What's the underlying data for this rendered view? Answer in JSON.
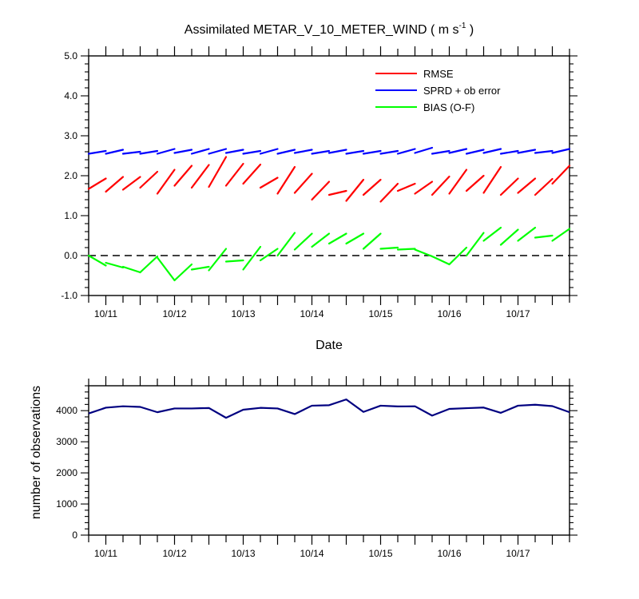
{
  "title_prefix": "Assimilated METAR_V_10_METER_WIND ( m s",
  "title_sup": "-1",
  "title_suffix": " )",
  "chart_data": [
    {
      "type": "line",
      "xlabel": "Date",
      "ylabel": "",
      "ylim": [
        -1.0,
        5.0
      ],
      "yticks": [
        "5.0",
        "4.0",
        "3.0",
        "2.0",
        "1.0",
        "0.0",
        "-1.0"
      ],
      "ytick_values": [
        5,
        4,
        3,
        2,
        1,
        0,
        -1
      ],
      "xticks": [
        "10/11",
        "10/12",
        "10/13",
        "10/14",
        "10/15",
        "10/16",
        "10/17"
      ],
      "xlim": [
        0,
        14
      ],
      "grid": false,
      "reference_line": 0,
      "legend_position": "top-right",
      "series": [
        {
          "name": "RMSE",
          "color": "#ff0000",
          "segments": [
            [
              [
                0.0,
                1.67
              ],
              [
                0.5,
                1.93
              ]
            ],
            [
              [
                0.5,
                1.6
              ],
              [
                1.0,
                1.97
              ]
            ],
            [
              [
                1.0,
                1.65
              ],
              [
                1.5,
                1.97
              ]
            ],
            [
              [
                1.5,
                1.7
              ],
              [
                2.0,
                2.1
              ]
            ],
            [
              [
                2.0,
                1.55
              ],
              [
                2.5,
                2.15
              ]
            ],
            [
              [
                2.5,
                1.75
              ],
              [
                3.0,
                2.25
              ]
            ],
            [
              [
                3.0,
                1.7
              ],
              [
                3.5,
                2.27
              ]
            ],
            [
              [
                3.5,
                1.72
              ],
              [
                4.0,
                2.47
              ]
            ],
            [
              [
                4.0,
                1.75
              ],
              [
                4.5,
                2.3
              ]
            ],
            [
              [
                4.5,
                1.8
              ],
              [
                5.0,
                2.28
              ]
            ],
            [
              [
                5.0,
                1.7
              ],
              [
                5.5,
                1.95
              ]
            ],
            [
              [
                5.5,
                1.55
              ],
              [
                6.0,
                2.22
              ]
            ],
            [
              [
                6.0,
                1.57
              ],
              [
                6.5,
                2.05
              ]
            ],
            [
              [
                6.5,
                1.4
              ],
              [
                7.0,
                1.85
              ]
            ],
            [
              [
                7.0,
                1.52
              ],
              [
                7.5,
                1.62
              ]
            ],
            [
              [
                7.5,
                1.37
              ],
              [
                8.0,
                1.9
              ]
            ],
            [
              [
                8.0,
                1.52
              ],
              [
                8.5,
                1.9
              ]
            ],
            [
              [
                8.5,
                1.35
              ],
              [
                9.0,
                1.8
              ]
            ],
            [
              [
                9.0,
                1.62
              ],
              [
                9.5,
                1.8
              ]
            ],
            [
              [
                9.5,
                1.55
              ],
              [
                10.0,
                1.85
              ]
            ],
            [
              [
                10.0,
                1.52
              ],
              [
                10.5,
                1.98
              ]
            ],
            [
              [
                10.5,
                1.55
              ],
              [
                11.0,
                2.15
              ]
            ],
            [
              [
                11.0,
                1.62
              ],
              [
                11.5,
                2.0
              ]
            ],
            [
              [
                11.5,
                1.57
              ],
              [
                12.0,
                2.22
              ]
            ],
            [
              [
                12.0,
                1.52
              ],
              [
                12.5,
                1.93
              ]
            ],
            [
              [
                12.5,
                1.57
              ],
              [
                13.0,
                1.93
              ]
            ],
            [
              [
                13.0,
                1.52
              ],
              [
                13.5,
                1.92
              ]
            ],
            [
              [
                13.5,
                1.8
              ],
              [
                14.0,
                2.25
              ]
            ]
          ]
        },
        {
          "name": "SPRD + ob error",
          "color": "#0000ff",
          "segments": [
            [
              [
                0.0,
                2.55
              ],
              [
                0.5,
                2.62
              ]
            ],
            [
              [
                0.5,
                2.55
              ],
              [
                1.0,
                2.65
              ]
            ],
            [
              [
                1.0,
                2.55
              ],
              [
                1.5,
                2.6
              ]
            ],
            [
              [
                1.5,
                2.55
              ],
              [
                2.0,
                2.62
              ]
            ],
            [
              [
                2.0,
                2.55
              ],
              [
                2.5,
                2.67
              ]
            ],
            [
              [
                2.5,
                2.57
              ],
              [
                3.0,
                2.65
              ]
            ],
            [
              [
                3.0,
                2.55
              ],
              [
                3.5,
                2.67
              ]
            ],
            [
              [
                3.5,
                2.55
              ],
              [
                4.0,
                2.67
              ]
            ],
            [
              [
                4.0,
                2.57
              ],
              [
                4.5,
                2.65
              ]
            ],
            [
              [
                4.5,
                2.55
              ],
              [
                5.0,
                2.62
              ]
            ],
            [
              [
                5.0,
                2.55
              ],
              [
                5.5,
                2.67
              ]
            ],
            [
              [
                5.5,
                2.55
              ],
              [
                6.0,
                2.65
              ]
            ],
            [
              [
                6.0,
                2.57
              ],
              [
                6.5,
                2.65
              ]
            ],
            [
              [
                6.5,
                2.55
              ],
              [
                7.0,
                2.62
              ]
            ],
            [
              [
                7.0,
                2.57
              ],
              [
                7.5,
                2.65
              ]
            ],
            [
              [
                7.5,
                2.55
              ],
              [
                8.0,
                2.62
              ]
            ],
            [
              [
                8.0,
                2.55
              ],
              [
                8.5,
                2.62
              ]
            ],
            [
              [
                8.5,
                2.55
              ],
              [
                9.0,
                2.62
              ]
            ],
            [
              [
                9.0,
                2.55
              ],
              [
                9.5,
                2.67
              ]
            ],
            [
              [
                9.5,
                2.57
              ],
              [
                10.0,
                2.7
              ]
            ],
            [
              [
                10.0,
                2.55
              ],
              [
                10.5,
                2.62
              ]
            ],
            [
              [
                10.5,
                2.57
              ],
              [
                11.0,
                2.67
              ]
            ],
            [
              [
                11.0,
                2.55
              ],
              [
                11.5,
                2.65
              ]
            ],
            [
              [
                11.5,
                2.57
              ],
              [
                12.0,
                2.67
              ]
            ],
            [
              [
                12.0,
                2.55
              ],
              [
                12.5,
                2.62
              ]
            ],
            [
              [
                12.5,
                2.57
              ],
              [
                13.0,
                2.65
              ]
            ],
            [
              [
                13.0,
                2.57
              ],
              [
                13.5,
                2.62
              ]
            ],
            [
              [
                13.5,
                2.57
              ],
              [
                14.0,
                2.67
              ]
            ]
          ]
        },
        {
          "name": "BIAS (O-F)",
          "color": "#00ff00",
          "segments": [
            [
              [
                0.0,
                0.0
              ],
              [
                0.5,
                -0.25
              ]
            ],
            [
              [
                0.5,
                -0.18
              ],
              [
                1.0,
                -0.3
              ]
            ],
            [
              [
                1.0,
                -0.28
              ],
              [
                1.5,
                -0.42
              ]
            ],
            [
              [
                1.5,
                -0.42
              ],
              [
                2.0,
                -0.02
              ]
            ],
            [
              [
                2.0,
                -0.05
              ],
              [
                2.5,
                -0.62
              ]
            ],
            [
              [
                2.5,
                -0.62
              ],
              [
                3.0,
                -0.22
              ]
            ],
            [
              [
                3.0,
                -0.35
              ],
              [
                3.5,
                -0.28
              ]
            ],
            [
              [
                3.5,
                -0.37
              ],
              [
                4.0,
                0.17
              ]
            ],
            [
              [
                4.0,
                -0.15
              ],
              [
                4.5,
                -0.12
              ]
            ],
            [
              [
                4.5,
                -0.35
              ],
              [
                5.0,
                0.22
              ]
            ],
            [
              [
                5.0,
                -0.12
              ],
              [
                5.5,
                0.17
              ]
            ],
            [
              [
                5.5,
                0.0
              ],
              [
                6.0,
                0.57
              ]
            ],
            [
              [
                6.0,
                0.15
              ],
              [
                6.5,
                0.55
              ]
            ],
            [
              [
                6.5,
                0.22
              ],
              [
                7.0,
                0.55
              ]
            ],
            [
              [
                7.0,
                0.3
              ],
              [
                7.5,
                0.55
              ]
            ],
            [
              [
                7.5,
                0.3
              ],
              [
                8.0,
                0.55
              ]
            ],
            [
              [
                8.0,
                0.17
              ],
              [
                8.5,
                0.55
              ]
            ],
            [
              [
                8.5,
                0.17
              ],
              [
                9.0,
                0.2
              ]
            ],
            [
              [
                9.0,
                0.15
              ],
              [
                9.5,
                0.17
              ]
            ],
            [
              [
                9.5,
                0.15
              ],
              [
                10.0,
                -0.02
              ]
            ],
            [
              [
                10.0,
                -0.02
              ],
              [
                10.5,
                -0.22
              ]
            ],
            [
              [
                10.5,
                -0.22
              ],
              [
                11.0,
                0.2
              ]
            ],
            [
              [
                11.0,
                0.0
              ],
              [
                11.5,
                0.57
              ]
            ],
            [
              [
                11.5,
                0.37
              ],
              [
                12.0,
                0.7
              ]
            ],
            [
              [
                12.0,
                0.27
              ],
              [
                12.5,
                0.65
              ]
            ],
            [
              [
                12.5,
                0.37
              ],
              [
                13.0,
                0.7
              ]
            ],
            [
              [
                13.0,
                0.45
              ],
              [
                13.5,
                0.5
              ]
            ],
            [
              [
                13.5,
                0.37
              ],
              [
                14.0,
                0.67
              ]
            ]
          ]
        }
      ]
    },
    {
      "type": "line",
      "xlabel": "",
      "ylabel": "number of observations",
      "ylim": [
        0,
        4800
      ],
      "yticks": [
        "0",
        "1000",
        "2000",
        "3000",
        "4000"
      ],
      "ytick_values": [
        0,
        1000,
        2000,
        3000,
        4000
      ],
      "xticks": [
        "10/11",
        "10/12",
        "10/13",
        "10/14",
        "10/15",
        "10/16",
        "10/17"
      ],
      "xlim": [
        0,
        14
      ],
      "grid": false,
      "series": [
        {
          "color": "#000080",
          "x": [
            0,
            0.5,
            1,
            1.5,
            2,
            2.5,
            3,
            3.5,
            4,
            4.5,
            5,
            5.5,
            6,
            6.5,
            7,
            7.5,
            8,
            8.5,
            9,
            9.5,
            10,
            10.5,
            11,
            11.5,
            12,
            12.5,
            13,
            13.5,
            14
          ],
          "values": [
            3910,
            4095,
            4140,
            4120,
            3950,
            4070,
            4070,
            4085,
            3770,
            4030,
            4090,
            4070,
            3890,
            4160,
            4175,
            4360,
            3960,
            4160,
            4135,
            4140,
            3840,
            4055,
            4080,
            4100,
            3930,
            4160,
            4190,
            4145,
            3950
          ]
        }
      ]
    }
  ]
}
